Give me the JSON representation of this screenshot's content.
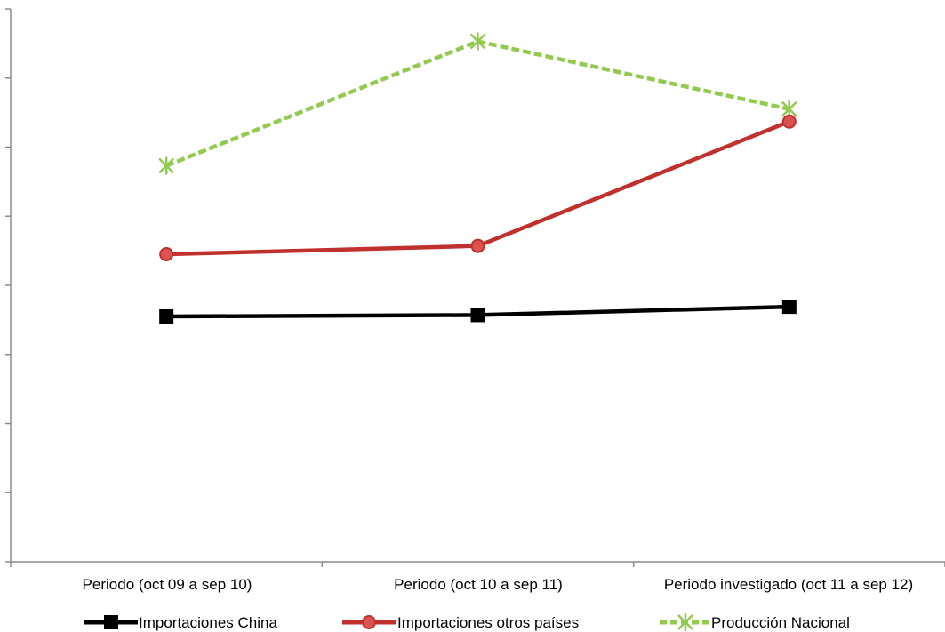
{
  "chart_data": {
    "type": "line",
    "title": "",
    "xlabel": "",
    "ylabel": "",
    "categories": [
      "Periodo  (oct 09 a sep 10)",
      "Periodo  (oct 10 a sep 11)",
      "Periodo investigado (oct 11 a sep 12)"
    ],
    "ylim": [
      0,
      8
    ],
    "y_tick_count": 9,
    "y_tick_labels_shown": false,
    "grid": false,
    "legend_position": "bottom",
    "series": [
      {
        "name": "Importaciones China",
        "values": [
          3.55,
          3.57,
          3.69
        ],
        "color": "#000000",
        "line_style": "solid",
        "marker": "square"
      },
      {
        "name": "Importaciones otros países",
        "values": [
          4.45,
          4.57,
          6.37
        ],
        "color": "#c0302c",
        "line_style": "solid",
        "marker": "circle"
      },
      {
        "name": "Producción Nacional",
        "values": [
          5.73,
          7.53,
          6.55
        ],
        "color": "#92c94f",
        "line_style": "dashed",
        "marker": "star"
      }
    ]
  }
}
